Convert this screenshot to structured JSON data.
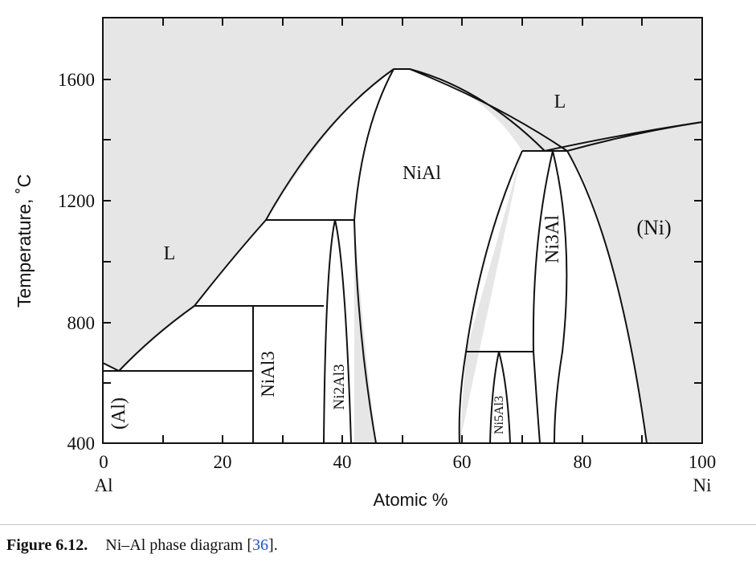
{
  "diagram": {
    "y_axis_title": "Temperature, ˚C",
    "x_axis_title": "Atomic %",
    "y_ticks": [
      "400",
      "800",
      "1200",
      "1600"
    ],
    "x_ticks": [
      "0",
      "20",
      "40",
      "60",
      "80",
      "100"
    ],
    "x_left_element": "Al",
    "x_right_element": "Ni",
    "colors": {
      "liquid": "#e6e6e6",
      "line": "#111111",
      "solid": "#ffffff"
    },
    "phases": {
      "L": "L",
      "NiAl": "NiAl",
      "Ni_solid": "(Ni)",
      "Al_solid": "(Al)",
      "NiAl3": "NiAl3",
      "Ni2Al3": "Ni2Al3",
      "Ni5Al3": "Ni5Al3",
      "Ni3Al": "Ni3Al"
    }
  },
  "caption": {
    "label": "Figure 6.12.",
    "text_before": "Ni–Al phase diagram [",
    "ref": "36",
    "text_after": "]."
  }
}
